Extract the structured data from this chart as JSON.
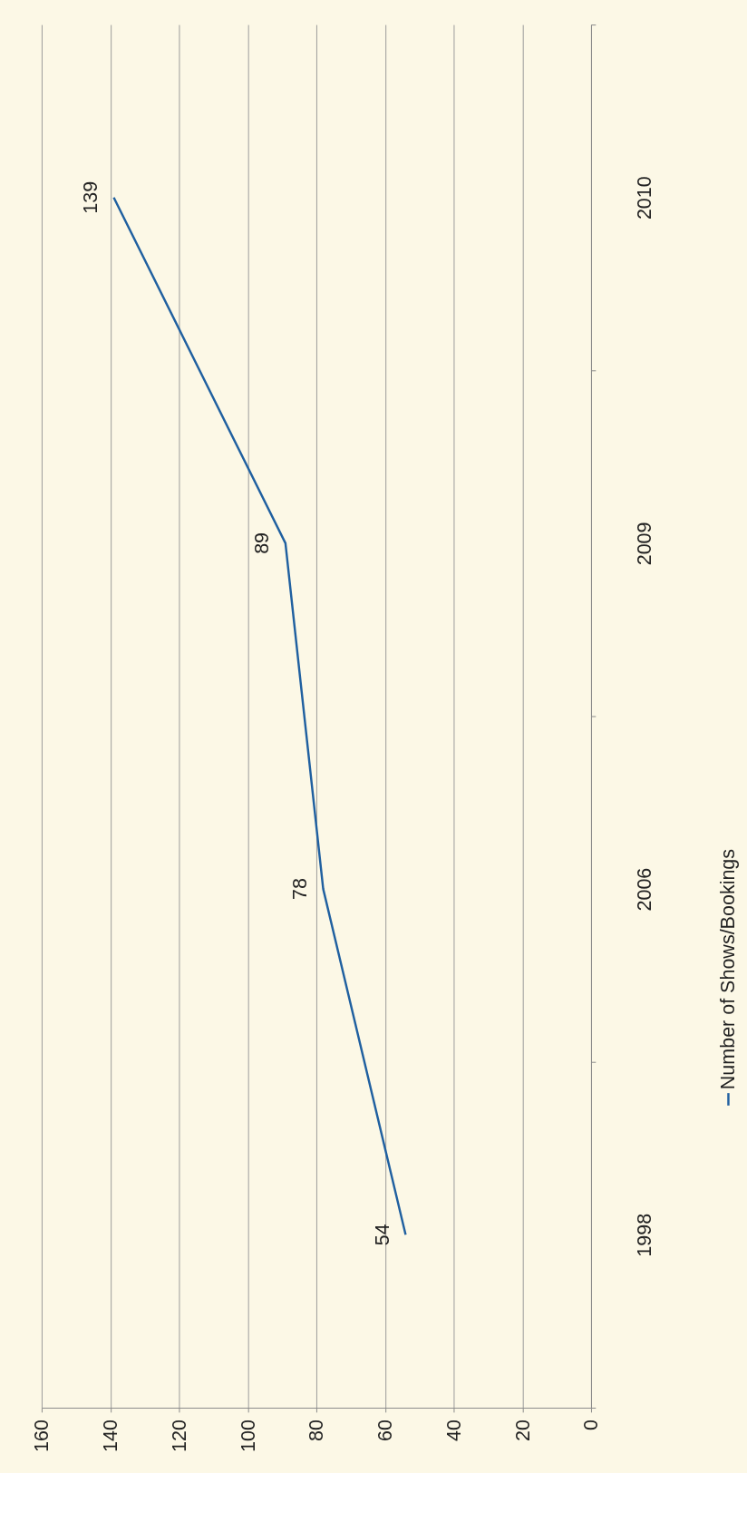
{
  "chart_data": {
    "type": "line",
    "orientation": "horizontal",
    "categories": [
      "2010",
      "2009",
      "2006",
      "1998"
    ],
    "series": [
      {
        "name": "Number of Shows/Bookings",
        "color": "#2060a0",
        "values": [
          139,
          89,
          78,
          54
        ]
      }
    ],
    "xlim": [
      160,
      0
    ],
    "xticks": [
      0,
      20,
      40,
      60,
      80,
      100,
      120,
      140,
      160
    ],
    "grid": "x",
    "legend": "right",
    "data_labels": true,
    "marker": "none",
    "line_style": "solid"
  }
}
